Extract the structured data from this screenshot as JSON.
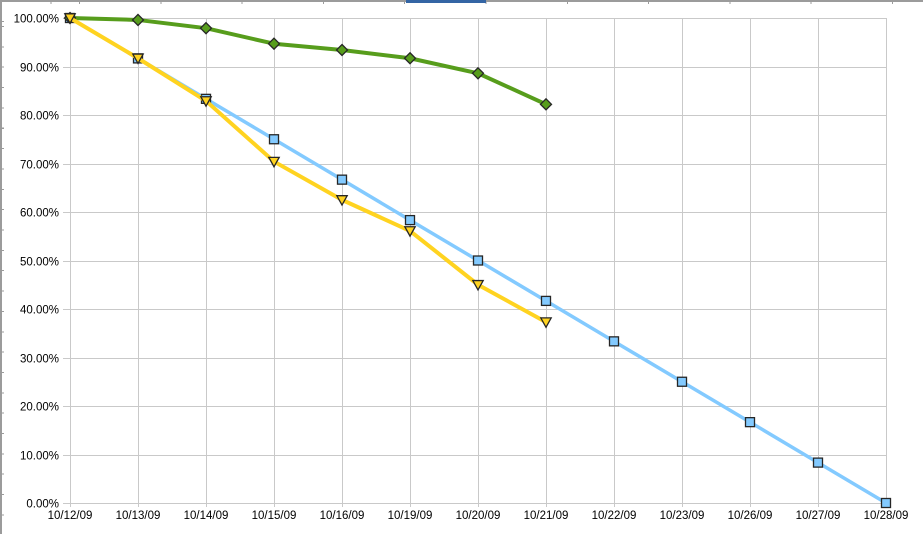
{
  "colors": {
    "background": "#ffffff",
    "gridline": "#c9c9c9",
    "axis_text": "#000000",
    "marker_border": "#262626",
    "sheet_edge": "#9b9b9b",
    "cell_selection": "#3465a4"
  },
  "chart_data": {
    "type": "line",
    "title": "",
    "xlabel": "",
    "ylabel": "",
    "ylim": [
      0,
      100
    ],
    "y_tick_step": 10,
    "grid": true,
    "legend": "none",
    "y_tick_labels": [
      "0.00%",
      "10.00%",
      "20.00%",
      "30.00%",
      "40.00%",
      "50.00%",
      "60.00%",
      "70.00%",
      "80.00%",
      "90.00%",
      "100.00%"
    ],
    "categories": [
      "10/12/09",
      "10/13/09",
      "10/14/09",
      "10/15/09",
      "10/16/09",
      "10/19/09",
      "10/20/09",
      "10/21/09",
      "10/22/09",
      "10/23/09",
      "10/26/09",
      "10/27/09",
      "10/28/09"
    ],
    "series": [
      {
        "name": "ideal-burndown-light-blue-squares",
        "color": "#83CAFF",
        "marker": "square",
        "line_width": 3.5,
        "values": [
          100,
          91.67,
          83.33,
          75,
          66.67,
          58.33,
          50,
          41.67,
          33.33,
          25,
          16.67,
          8.33,
          0
        ]
      },
      {
        "name": "green-diamonds",
        "color": "#579D1C",
        "marker": "diamond",
        "line_width": 4,
        "values": [
          100,
          99.6,
          97.9,
          94.7,
          93.4,
          91.7,
          88.6,
          82.2
        ]
      },
      {
        "name": "actual-burndown-yellow-triangles",
        "color": "#FFD320",
        "marker": "triangle-down",
        "line_width": 4,
        "values": [
          100,
          91.7,
          82.9,
          70.4,
          62.5,
          56.1,
          45,
          37.3
        ]
      }
    ]
  }
}
